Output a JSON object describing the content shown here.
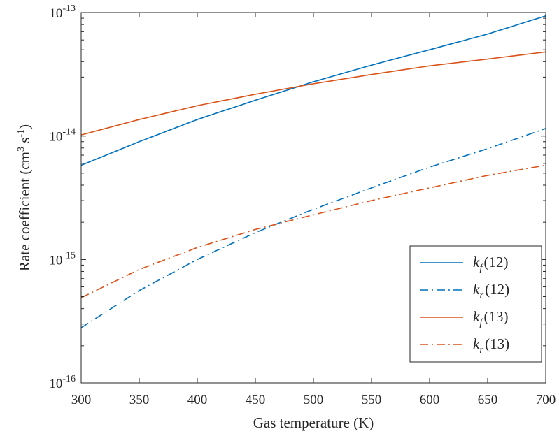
{
  "chart_data": {
    "type": "line",
    "title": "",
    "xlabel": "Gas temperature (K)",
    "ylabel_parts": {
      "main": "Rate coefficient (cm",
      "sup1": "3",
      "mid": " s",
      "sup2": "-1",
      "end": ")"
    },
    "xlim": [
      300,
      700
    ],
    "ylim": [
      1e-16,
      1e-13
    ],
    "yscale": "log",
    "x_ticks": [
      300,
      350,
      400,
      450,
      500,
      550,
      600,
      650,
      700
    ],
    "x_tick_labels": [
      "300",
      "350",
      "400",
      "450",
      "500",
      "550",
      "600",
      "650",
      "700"
    ],
    "y_ticks": [
      {
        "value": 1e-16,
        "base": "10",
        "exp": "-16"
      },
      {
        "value": 1e-15,
        "base": "10",
        "exp": "-15"
      },
      {
        "value": 1e-14,
        "base": "10",
        "exp": "-14"
      },
      {
        "value": 1e-13,
        "base": "10",
        "exp": "-13"
      }
    ],
    "grid": false,
    "legend_position": "bottom-right",
    "x": [
      300,
      350,
      400,
      450,
      500,
      550,
      600,
      650,
      700
    ],
    "series": [
      {
        "name": "kf(12)",
        "legend": {
          "k": "k",
          "sub": "f",
          "num": "(12)"
        },
        "color": "#0072BD",
        "dash": "solid",
        "values": [
          5.8e-15,
          9e-15,
          1.36e-14,
          1.95e-14,
          2.75e-14,
          3.75e-14,
          5e-14,
          6.7e-14,
          9.4e-14
        ]
      },
      {
        "name": "kr(12)",
        "legend": {
          "k": "k",
          "sub": "r",
          "num": "(12)"
        },
        "color": "#0072BD",
        "dash": "dashdot",
        "values": [
          2.8e-16,
          5.6e-16,
          1e-15,
          1.65e-15,
          2.55e-15,
          3.8e-15,
          5.6e-15,
          7.9e-15,
          1.15e-14
        ]
      },
      {
        "name": "kf(13)",
        "legend": {
          "k": "k",
          "sub": "f",
          "num": "(13)"
        },
        "color": "#D95319",
        "dash": "solid",
        "values": [
          1.02e-14,
          1.36e-14,
          1.76e-14,
          2.18e-14,
          2.65e-14,
          3.15e-14,
          3.7e-14,
          4.2e-14,
          4.8e-14
        ]
      },
      {
        "name": "kr(13)",
        "legend": {
          "k": "k",
          "sub": "r",
          "num": "(13)"
        },
        "color": "#D95319",
        "dash": "dashdot",
        "values": [
          4.9e-16,
          8.3e-16,
          1.25e-15,
          1.75e-15,
          2.3e-15,
          3e-15,
          3.8e-15,
          4.8e-15,
          5.8e-15
        ]
      }
    ]
  }
}
